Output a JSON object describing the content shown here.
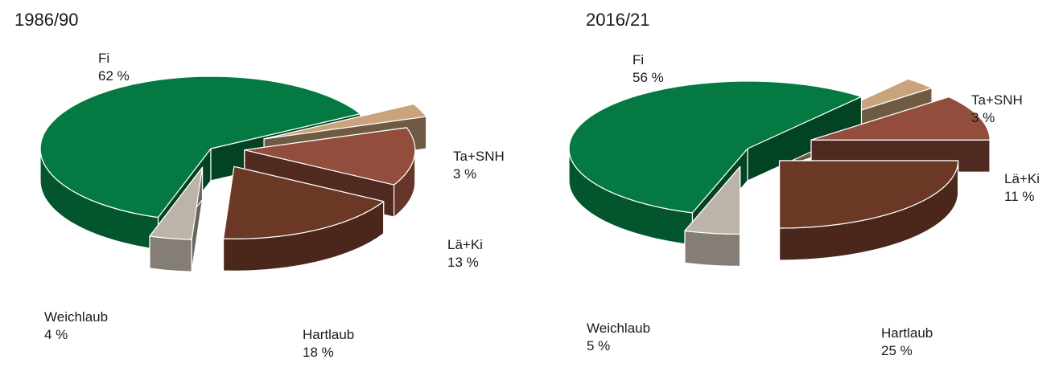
{
  "chart_data": [
    {
      "type": "pie",
      "title": "1986/90",
      "slices": [
        {
          "label": "Fi",
          "value": 62,
          "value_label": "62 %",
          "color": "#047a42"
        },
        {
          "label": "Ta+SNH",
          "value": 3,
          "value_label": "3 %",
          "color": "#c9a37c"
        },
        {
          "label": "Lä+Ki",
          "value": 13,
          "value_label": "13 %",
          "color": "#924d3c"
        },
        {
          "label": "Hartlaub",
          "value": 18,
          "value_label": "18 %",
          "color": "#6b3826"
        },
        {
          "label": "Weichlaub",
          "value": 4,
          "value_label": "4 %",
          "color": "#bdb4a9"
        }
      ],
      "style": "3d-exploded"
    },
    {
      "type": "pie",
      "title": "2016/21",
      "slices": [
        {
          "label": "Fi",
          "value": 56,
          "value_label": "56 %",
          "color": "#047a42"
        },
        {
          "label": "Ta+SNH",
          "value": 3,
          "value_label": "3 %",
          "color": "#c9a37c"
        },
        {
          "label": "Lä+Ki",
          "value": 11,
          "value_label": "11 %",
          "color": "#924d3c"
        },
        {
          "label": "Hartlaub",
          "value": 25,
          "value_label": "25 %",
          "color": "#6b3826"
        },
        {
          "label": "Weichlaub",
          "value": 5,
          "value_label": "5 %",
          "color": "#bdb4a9"
        }
      ],
      "style": "3d-exploded"
    }
  ]
}
